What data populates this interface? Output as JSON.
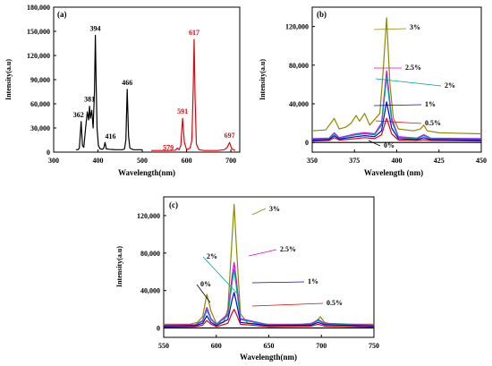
{
  "chart_data": [
    {
      "panel_label": "(a)",
      "type": "line",
      "xlabel": "Wavelength(nm)",
      "ylabel": "Intensity(a.u)",
      "xlim": [
        300,
        720
      ],
      "ylim": [
        0,
        180000
      ],
      "xticks": [
        300,
        400,
        500,
        600,
        700
      ],
      "yticks": [
        0,
        30000,
        60000,
        90000,
        120000,
        150000,
        180000
      ],
      "ytick_labels": [
        "0",
        "30,000",
        "60,000",
        "90,000",
        "120,000",
        "150,000",
        "180,000"
      ],
      "peak_labels": [
        {
          "text": "362",
          "x": 362,
          "y": 38000
        },
        {
          "text": "381",
          "x": 381,
          "y": 57000
        },
        {
          "text": "394",
          "x": 394,
          "y": 145000
        },
        {
          "text": "416",
          "x": 416,
          "y": 12000
        },
        {
          "text": "466",
          "x": 466,
          "y": 78000
        },
        {
          "text": "579",
          "x": 579,
          "y": 5000,
          "color": "#e8000b"
        },
        {
          "text": "591",
          "x": 591,
          "y": 42000,
          "color": "#e8000b"
        },
        {
          "text": "617",
          "x": 617,
          "y": 140000,
          "color": "#e8000b"
        },
        {
          "text": "697",
          "x": 697,
          "y": 12000,
          "color": "#e8000b"
        }
      ],
      "series": [
        {
          "color": "#000000",
          "x": [
            350,
            355,
            358,
            362,
            365,
            368,
            372,
            376,
            379,
            381,
            383,
            386,
            389,
            392,
            394,
            396,
            398,
            401,
            405,
            410,
            413,
            416,
            419,
            425,
            440,
            455,
            460,
            463,
            466,
            469,
            472,
            480,
            500
          ],
          "y": [
            3000,
            3000,
            5000,
            38000,
            8000,
            6000,
            30000,
            50000,
            40000,
            57000,
            42000,
            52000,
            30000,
            75000,
            145000,
            85000,
            30000,
            8000,
            4000,
            3500,
            5000,
            12000,
            4000,
            3500,
            3000,
            3000,
            4000,
            15000,
            78000,
            20000,
            5000,
            3000,
            3000
          ]
        },
        {
          "color": "#e8000b",
          "x": [
            520,
            560,
            575,
            579,
            583,
            587,
            591,
            595,
            600,
            608,
            612,
            615,
            617,
            619,
            622,
            628,
            640,
            670,
            685,
            692,
            697,
            702,
            710
          ],
          "y": [
            2000,
            2000,
            2500,
            5000,
            3000,
            8000,
            42000,
            12000,
            3000,
            5000,
            15000,
            80000,
            140000,
            70000,
            10000,
            3000,
            2000,
            2000,
            3000,
            6000,
            12000,
            4000,
            2000
          ]
        }
      ]
    },
    {
      "panel_label": "(b)",
      "type": "line",
      "xlabel": "Wavelength (nm)",
      "ylabel": "Intensity(a.u)",
      "xlim": [
        350,
        450
      ],
      "ylim": [
        -10000,
        140000
      ],
      "xticks": [
        350,
        375,
        400,
        425,
        450
      ],
      "yticks": [
        0,
        40000,
        80000,
        120000
      ],
      "ytick_labels": [
        "0",
        "40,000",
        "80,000",
        "120,000"
      ],
      "series_labels": [
        {
          "text": "3%",
          "color": "#000000"
        },
        {
          "text": "2.5%",
          "color": "#000000"
        },
        {
          "text": "2%",
          "color": "#000000"
        },
        {
          "text": "1%",
          "color": "#000000"
        },
        {
          "text": "0.5%",
          "color": "#000000"
        },
        {
          "text": "0%",
          "color": "#000000"
        }
      ],
      "series": [
        {
          "name": "3%",
          "color": "#8b8b00",
          "x": [
            350,
            358,
            361,
            363,
            366,
            370,
            373,
            376,
            378,
            381,
            384,
            387,
            390,
            392,
            394,
            396,
            398,
            401,
            410,
            414,
            416,
            418,
            425,
            450
          ],
          "y": [
            12000,
            13000,
            20000,
            25000,
            14000,
            16000,
            20000,
            28000,
            22000,
            30000,
            18000,
            24000,
            30000,
            75000,
            129000,
            60000,
            25000,
            14000,
            12000,
            14000,
            18000,
            12000,
            10000,
            9000
          ]
        },
        {
          "name": "2.5%",
          "color": "#e000e0",
          "x": [
            350,
            360,
            363,
            366,
            376,
            381,
            387,
            391,
            394,
            397,
            401,
            412,
            416,
            420,
            450
          ],
          "y": [
            4000,
            4500,
            10000,
            5000,
            9000,
            10000,
            9000,
            20000,
            74000,
            25000,
            6000,
            4500,
            8000,
            4500,
            4000
          ]
        },
        {
          "name": "2%",
          "color": "#00a0a0",
          "x": [
            350,
            360,
            363,
            366,
            376,
            381,
            387,
            391,
            394,
            397,
            401,
            412,
            416,
            420,
            450
          ],
          "y": [
            3500,
            4000,
            9000,
            4500,
            8000,
            9000,
            8000,
            18000,
            68000,
            22000,
            5500,
            4000,
            7000,
            4000,
            3500
          ]
        },
        {
          "name": "1%",
          "color": "#0000ee",
          "x": [
            350,
            360,
            363,
            366,
            376,
            381,
            387,
            391,
            394,
            397,
            401,
            412,
            416,
            420,
            450
          ],
          "y": [
            2500,
            3000,
            7000,
            3500,
            6000,
            7000,
            6000,
            12000,
            42000,
            15000,
            4000,
            3000,
            5000,
            3000,
            2500
          ]
        },
        {
          "name": "0.5%",
          "color": "#e8000b",
          "x": [
            350,
            360,
            363,
            366,
            376,
            381,
            387,
            391,
            394,
            397,
            401,
            412,
            416,
            420,
            450
          ],
          "y": [
            1500,
            2000,
            5000,
            2500,
            4000,
            5000,
            4000,
            8000,
            25000,
            9000,
            2500,
            2000,
            3000,
            2000,
            1500
          ]
        },
        {
          "name": "0%",
          "color": "#000000",
          "x": [
            350,
            450
          ],
          "y": [
            0,
            0
          ]
        }
      ]
    },
    {
      "panel_label": "(c)",
      "type": "line",
      "xlabel": "Wavelength(nm)",
      "ylabel": "Intensity(a.u)",
      "xlim": [
        550,
        750
      ],
      "ylim": [
        -10000,
        140000
      ],
      "xticks": [
        550,
        600,
        650,
        700,
        750
      ],
      "yticks": [
        0,
        40000,
        80000,
        120000
      ],
      "ytick_labels": [
        "0",
        "40,000",
        "80,000",
        "120,000"
      ],
      "series_labels": [
        {
          "text": "3%",
          "color": "#000000"
        },
        {
          "text": "2.5%",
          "color": "#000000"
        },
        {
          "text": "2%",
          "color": "#000000"
        },
        {
          "text": "1%",
          "color": "#000000"
        },
        {
          "text": "0.5%",
          "color": "#000000"
        },
        {
          "text": "0%",
          "color": "#000000"
        }
      ],
      "series": [
        {
          "name": "3%",
          "color": "#8b8b00",
          "x": [
            550,
            575,
            582,
            587,
            591,
            595,
            600,
            607,
            611,
            615,
            617,
            619,
            623,
            630,
            650,
            680,
            690,
            695,
            699,
            703,
            710,
            750
          ],
          "y": [
            4000,
            4000,
            6000,
            12000,
            36000,
            18000,
            5000,
            6000,
            20000,
            95000,
            132000,
            90000,
            15000,
            5000,
            4000,
            4000,
            5000,
            7000,
            12000,
            6000,
            4000,
            4000
          ]
        },
        {
          "name": "2.5%",
          "color": "#e000e0",
          "x": [
            550,
            580,
            587,
            591,
            595,
            600,
            611,
            615,
            617,
            619,
            623,
            650,
            690,
            697,
            703,
            750
          ],
          "y": [
            3000,
            3500,
            8000,
            22000,
            10000,
            4000,
            15000,
            55000,
            70000,
            52000,
            10000,
            3500,
            4000,
            9000,
            5000,
            3000
          ]
        },
        {
          "name": "2%",
          "color": "#00a0a0",
          "x": [
            550,
            580,
            587,
            591,
            595,
            600,
            611,
            615,
            617,
            619,
            623,
            650,
            690,
            697,
            703,
            750
          ],
          "y": [
            2500,
            3000,
            7000,
            19000,
            9000,
            3500,
            13000,
            48000,
            62000,
            45000,
            9000,
            3000,
            3500,
            8000,
            4500,
            2500
          ]
        },
        {
          "name": "1%",
          "color": "#0000ee",
          "x": [
            550,
            580,
            587,
            591,
            595,
            600,
            611,
            615,
            617,
            619,
            623,
            650,
            690,
            697,
            703,
            750
          ],
          "y": [
            2000,
            2500,
            5000,
            13000,
            6000,
            2500,
            9000,
            30000,
            38000,
            28000,
            6000,
            2500,
            3000,
            6000,
            3500,
            2000
          ]
        },
        {
          "name": "0.5%",
          "color": "#e8000b",
          "x": [
            550,
            580,
            587,
            591,
            595,
            600,
            611,
            615,
            617,
            619,
            623,
            650,
            690,
            697,
            703,
            750
          ],
          "y": [
            1000,
            1500,
            3000,
            8000,
            4000,
            1500,
            5000,
            16000,
            20000,
            15000,
            4000,
            1500,
            2000,
            4000,
            2000,
            1000
          ]
        },
        {
          "name": "0%",
          "color": "#000000",
          "x": [
            550,
            750
          ],
          "y": [
            0,
            0
          ]
        }
      ]
    }
  ]
}
